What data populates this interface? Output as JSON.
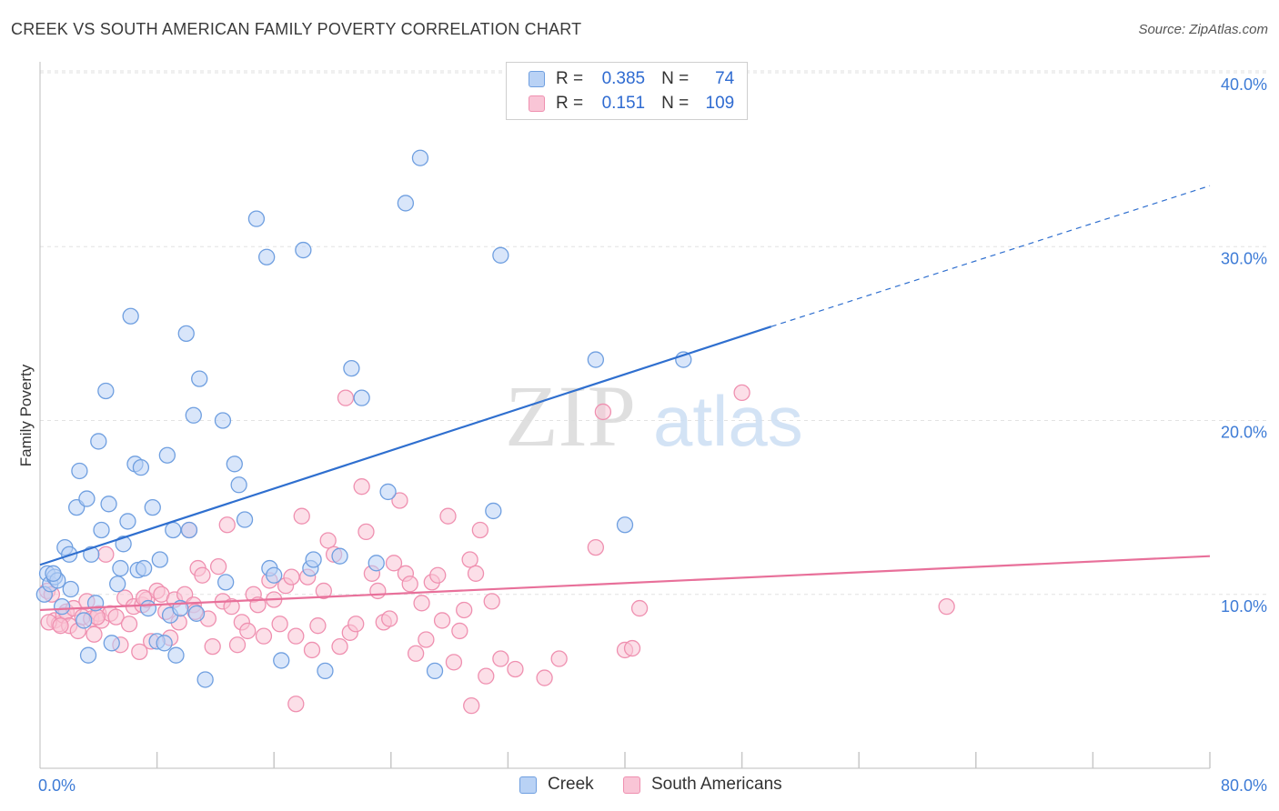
{
  "header": {
    "title": "CREEK VS SOUTH AMERICAN FAMILY POVERTY CORRELATION CHART",
    "source": "Source: ZipAtlas.com"
  },
  "legend": {
    "creek": {
      "r_label": "R =",
      "r_value": "0.385",
      "n_label": "N =",
      "n_value": "74"
    },
    "south": {
      "r_label": "R =",
      "r_value": "0.151",
      "n_label": "N =",
      "n_value": "109"
    }
  },
  "watermark": {
    "zip": "ZIP",
    "atlas": "atlas"
  },
  "colors": {
    "creek_fill": "#b9d2f5",
    "creek_stroke": "#6f9fe0",
    "creek_line": "#2f6fcf",
    "south_fill": "#f9c5d6",
    "south_stroke": "#ef90b0",
    "south_line": "#e8709a",
    "axis_text": "#3d7bd6"
  },
  "chart_data": {
    "type": "scatter",
    "title": "CREEK VS SOUTH AMERICAN FAMILY POVERTY CORRELATION CHART",
    "xlabel": "",
    "ylabel": "Family Poverty",
    "xlim": [
      0,
      80
    ],
    "ylim": [
      0,
      40
    ],
    "x_tick_labels": [
      "0.0%",
      "80.0%"
    ],
    "y_ticks": [
      10,
      20,
      30,
      40
    ],
    "y_tick_labels": [
      "10.0%",
      "20.0%",
      "30.0%",
      "40.0%"
    ],
    "grid": true,
    "legend_bottom": [
      "Creek",
      "South Americans"
    ],
    "series": [
      {
        "name": "Creek",
        "r": 0.385,
        "n": 74,
        "trend": {
          "x0": 0,
          "y0": 11.7,
          "x1": 50,
          "y1": 25.4,
          "dash_to_x": 80,
          "dash_to_y": 33.5
        },
        "points": [
          [
            0.3,
            10.0
          ],
          [
            0.5,
            11.2
          ],
          [
            0.7,
            10.6
          ],
          [
            1.0,
            11.0
          ],
          [
            1.2,
            10.8
          ],
          [
            1.5,
            9.3
          ],
          [
            1.7,
            12.7
          ],
          [
            2.0,
            12.3
          ],
          [
            2.1,
            10.3
          ],
          [
            2.5,
            15.0
          ],
          [
            2.7,
            17.1
          ],
          [
            3.0,
            8.5
          ],
          [
            3.2,
            15.5
          ],
          [
            3.3,
            6.5
          ],
          [
            3.5,
            12.3
          ],
          [
            3.8,
            9.5
          ],
          [
            4.0,
            18.8
          ],
          [
            4.2,
            13.7
          ],
          [
            4.5,
            21.7
          ],
          [
            4.7,
            15.2
          ],
          [
            4.9,
            7.2
          ],
          [
            5.3,
            10.6
          ],
          [
            5.5,
            11.5
          ],
          [
            5.7,
            12.9
          ],
          [
            6.0,
            14.2
          ],
          [
            6.2,
            26.0
          ],
          [
            6.5,
            17.5
          ],
          [
            6.7,
            11.4
          ],
          [
            6.9,
            17.3
          ],
          [
            7.1,
            11.5
          ],
          [
            7.4,
            9.2
          ],
          [
            7.7,
            15.0
          ],
          [
            8.0,
            7.3
          ],
          [
            8.2,
            12.0
          ],
          [
            8.5,
            7.2
          ],
          [
            8.7,
            18.0
          ],
          [
            8.9,
            8.8
          ],
          [
            9.1,
            13.7
          ],
          [
            9.3,
            6.5
          ],
          [
            9.6,
            9.2
          ],
          [
            10.0,
            25.0
          ],
          [
            10.2,
            13.7
          ],
          [
            10.5,
            20.3
          ],
          [
            10.7,
            8.9
          ],
          [
            10.9,
            22.4
          ],
          [
            11.3,
            5.1
          ],
          [
            12.5,
            20.0
          ],
          [
            12.7,
            10.7
          ],
          [
            13.3,
            17.5
          ],
          [
            13.6,
            16.3
          ],
          [
            14.0,
            14.3
          ],
          [
            14.8,
            31.6
          ],
          [
            15.5,
            29.4
          ],
          [
            15.7,
            11.5
          ],
          [
            16.0,
            11.1
          ],
          [
            16.5,
            6.2
          ],
          [
            18.0,
            29.8
          ],
          [
            18.5,
            11.5
          ],
          [
            18.7,
            12.0
          ],
          [
            19.5,
            5.6
          ],
          [
            20.5,
            12.2
          ],
          [
            21.3,
            23.0
          ],
          [
            22.0,
            21.3
          ],
          [
            23.0,
            11.8
          ],
          [
            23.8,
            15.9
          ],
          [
            25.0,
            32.5
          ],
          [
            26.0,
            35.1
          ],
          [
            27.0,
            5.6
          ],
          [
            31.0,
            14.8
          ],
          [
            31.5,
            29.5
          ],
          [
            38.0,
            23.5
          ],
          [
            40.0,
            14.0
          ],
          [
            44.0,
            23.5
          ],
          [
            0.9,
            11.2
          ]
        ]
      },
      {
        "name": "South Americans",
        "r": 0.151,
        "n": 109,
        "trend": {
          "x0": 0,
          "y0": 9.1,
          "x1": 80,
          "y1": 12.2
        },
        "points": [
          [
            0.5,
            10.2
          ],
          [
            0.8,
            10.0
          ],
          [
            1.0,
            8.5
          ],
          [
            1.3,
            8.3
          ],
          [
            1.6,
            8.8
          ],
          [
            1.8,
            9.0
          ],
          [
            2.0,
            8.2
          ],
          [
            2.3,
            9.2
          ],
          [
            2.6,
            7.9
          ],
          [
            2.9,
            8.7
          ],
          [
            3.2,
            9.6
          ],
          [
            3.5,
            8.6
          ],
          [
            3.7,
            7.7
          ],
          [
            4.0,
            8.9
          ],
          [
            4.2,
            8.5
          ],
          [
            4.5,
            12.3
          ],
          [
            4.8,
            8.9
          ],
          [
            5.2,
            8.7
          ],
          [
            5.5,
            7.1
          ],
          [
            5.8,
            9.8
          ],
          [
            6.1,
            8.3
          ],
          [
            6.4,
            9.3
          ],
          [
            6.8,
            6.7
          ],
          [
            7.0,
            9.4
          ],
          [
            7.3,
            9.7
          ],
          [
            7.6,
            7.3
          ],
          [
            8.0,
            10.2
          ],
          [
            8.3,
            10.0
          ],
          [
            8.6,
            9.0
          ],
          [
            8.9,
            7.5
          ],
          [
            9.2,
            9.7
          ],
          [
            9.5,
            8.4
          ],
          [
            9.9,
            10.0
          ],
          [
            10.2,
            13.7
          ],
          [
            10.5,
            9.4
          ],
          [
            10.8,
            11.5
          ],
          [
            11.1,
            11.1
          ],
          [
            11.5,
            8.6
          ],
          [
            11.8,
            7.0
          ],
          [
            12.2,
            11.6
          ],
          [
            12.5,
            9.6
          ],
          [
            12.8,
            14.0
          ],
          [
            13.1,
            9.3
          ],
          [
            13.5,
            7.1
          ],
          [
            13.8,
            8.4
          ],
          [
            14.2,
            7.9
          ],
          [
            14.6,
            10.0
          ],
          [
            14.9,
            9.4
          ],
          [
            15.3,
            7.6
          ],
          [
            15.7,
            10.8
          ],
          [
            16.0,
            9.7
          ],
          [
            16.4,
            8.3
          ],
          [
            16.8,
            10.5
          ],
          [
            17.2,
            11.0
          ],
          [
            17.5,
            7.6
          ],
          [
            17.9,
            14.5
          ],
          [
            18.3,
            11.0
          ],
          [
            18.6,
            6.8
          ],
          [
            19.0,
            8.2
          ],
          [
            19.4,
            10.2
          ],
          [
            19.7,
            13.1
          ],
          [
            20.1,
            12.3
          ],
          [
            20.5,
            7.0
          ],
          [
            20.9,
            21.3
          ],
          [
            21.2,
            7.8
          ],
          [
            21.6,
            8.3
          ],
          [
            22.0,
            16.2
          ],
          [
            22.3,
            13.6
          ],
          [
            22.7,
            11.2
          ],
          [
            23.1,
            10.2
          ],
          [
            23.5,
            8.4
          ],
          [
            23.9,
            8.6
          ],
          [
            24.2,
            11.8
          ],
          [
            24.6,
            15.4
          ],
          [
            25.0,
            11.2
          ],
          [
            25.3,
            10.6
          ],
          [
            25.7,
            6.6
          ],
          [
            26.1,
            9.5
          ],
          [
            26.4,
            7.4
          ],
          [
            26.8,
            10.7
          ],
          [
            27.2,
            11.1
          ],
          [
            27.5,
            8.5
          ],
          [
            27.9,
            14.5
          ],
          [
            28.3,
            6.1
          ],
          [
            28.7,
            7.9
          ],
          [
            29.0,
            9.1
          ],
          [
            29.4,
            12.0
          ],
          [
            29.8,
            11.2
          ],
          [
            30.1,
            13.7
          ],
          [
            30.5,
            5.3
          ],
          [
            30.9,
            9.6
          ],
          [
            31.5,
            6.3
          ],
          [
            32.5,
            5.7
          ],
          [
            34.5,
            5.2
          ],
          [
            35.5,
            6.3
          ],
          [
            38.0,
            12.7
          ],
          [
            38.5,
            20.5
          ],
          [
            40.0,
            6.8
          ],
          [
            40.5,
            6.9
          ],
          [
            41.0,
            9.2
          ],
          [
            48.0,
            21.6
          ],
          [
            62.0,
            9.3
          ],
          [
            17.5,
            3.7
          ],
          [
            29.5,
            3.6
          ],
          [
            0.6,
            8.4
          ],
          [
            1.4,
            8.2
          ],
          [
            3.9,
            8.7
          ],
          [
            7.1,
            9.8
          ],
          [
            10.6,
            9.0
          ]
        ]
      }
    ]
  }
}
